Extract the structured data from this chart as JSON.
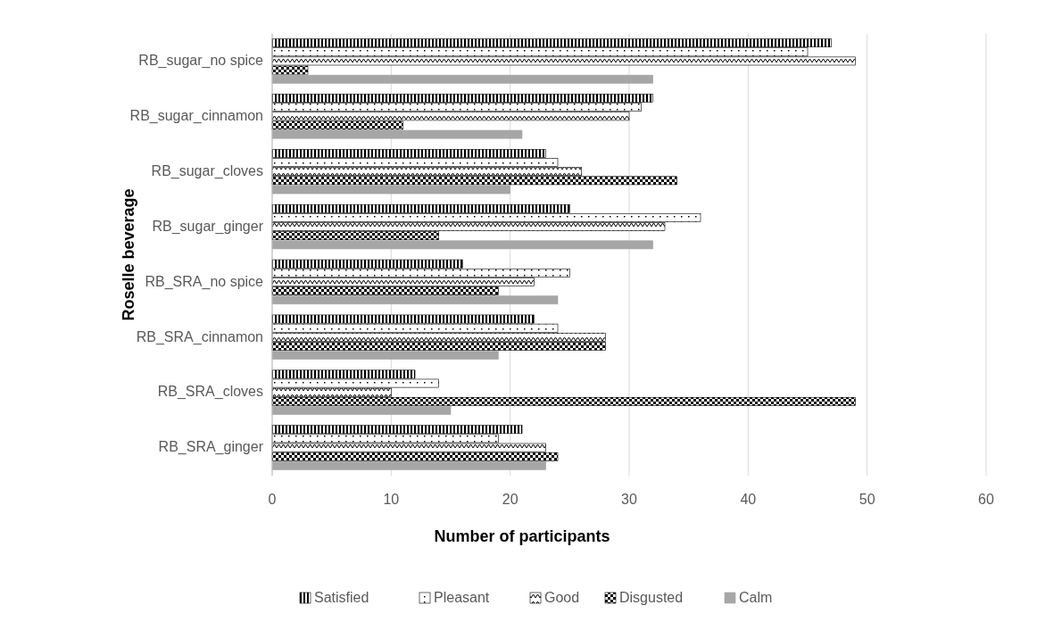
{
  "chart_data": {
    "type": "bar",
    "orientation": "horizontal",
    "xlabel": "Number of participants",
    "ylabel": "Roselle beverage",
    "categories": [
      "RB_sugar_no spice",
      "RB_sugar_cinnamon",
      "RB_sugar_cloves",
      "RB_sugar_ginger",
      "RB_SRA_no spice",
      "RB_SRA_cinnamon",
      "RB_SRA_cloves",
      "RB_SRA_ginger"
    ],
    "series": [
      {
        "name": "Satisfied",
        "color": "#000000",
        "values": [
          47,
          32,
          23,
          25,
          16,
          22,
          12,
          21
        ]
      },
      {
        "name": "Pleasant",
        "color": "#000000",
        "values": [
          45,
          31,
          24,
          36,
          25,
          24,
          14,
          19
        ]
      },
      {
        "name": "Good",
        "color": "#000000",
        "values": [
          49,
          30,
          26,
          33,
          22,
          28,
          10,
          23
        ]
      },
      {
        "name": "Disgusted",
        "color": "#000000",
        "values": [
          3,
          11,
          34,
          14,
          19,
          28,
          49,
          24
        ]
      },
      {
        "name": "Calm",
        "color": "#a6a6a6",
        "values": [
          32,
          21,
          20,
          32,
          24,
          19,
          15,
          23
        ]
      }
    ],
    "xlim": [
      0,
      60
    ],
    "xticks": [
      0,
      10,
      20,
      30,
      40,
      50,
      60
    ],
    "grid": "x",
    "legend": "bottom"
  }
}
